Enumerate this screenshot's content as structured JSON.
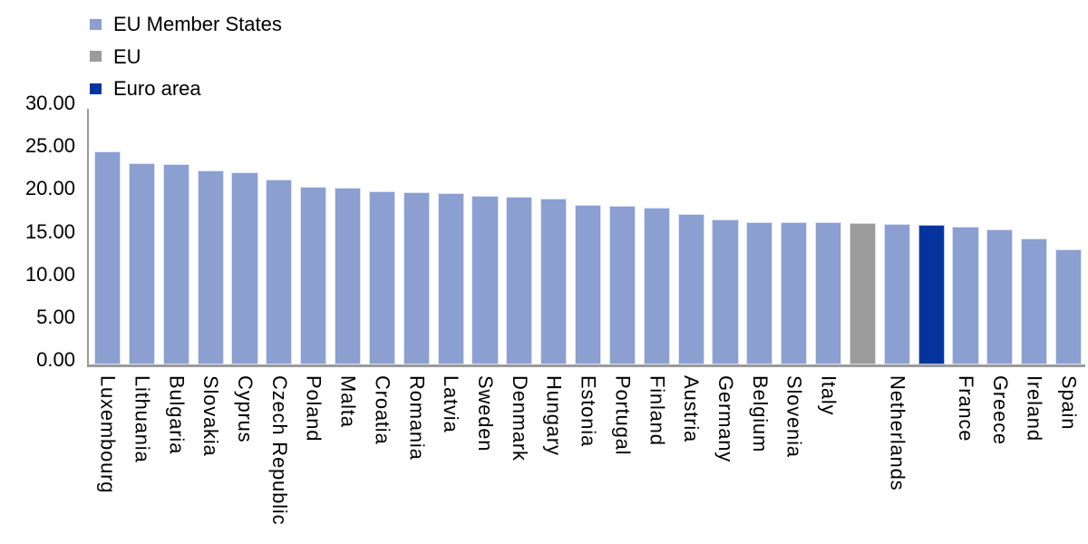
{
  "chart_data": {
    "type": "bar",
    "title": "",
    "xlabel": "",
    "ylabel": "",
    "ylim": [
      0,
      30
    ],
    "grid": false,
    "legend_position": "top-left",
    "axis_color": "#9B9B9B",
    "text_color": "#000000",
    "yticks": [
      {
        "value": 0,
        "label": "0.00"
      },
      {
        "value": 5,
        "label": "5.00"
      },
      {
        "value": 10,
        "label": "10.00"
      },
      {
        "value": 15,
        "label": "15.00"
      },
      {
        "value": 20,
        "label": "20.00"
      },
      {
        "value": 25,
        "label": "25.00"
      },
      {
        "value": 30,
        "label": "30.00"
      }
    ],
    "legend": [
      {
        "name": "EU Member States",
        "color": "#8B9FD1",
        "border": "#DDE3F2"
      },
      {
        "name": "EU",
        "color": "#9B9B9B",
        "border": "#D9D9D9"
      },
      {
        "name": "Euro area",
        "color": "#05349E",
        "border": "#B9C3E2"
      }
    ],
    "bars": [
      {
        "label": "Luxembourg",
        "series": "EU Member States",
        "value": 24.9
      },
      {
        "label": "Lithuania",
        "series": "EU Member States",
        "value": 23.5
      },
      {
        "label": "Bulgaria",
        "series": "EU Member States",
        "value": 23.4
      },
      {
        "label": "Slovakia",
        "series": "EU Member States",
        "value": 22.7
      },
      {
        "label": "Cyprus",
        "series": "EU Member States",
        "value": 22.5
      },
      {
        "label": "Czech Republic",
        "series": "EU Member States",
        "value": 21.6
      },
      {
        "label": "Poland",
        "series": "EU Member States",
        "value": 20.8
      },
      {
        "label": "Malta",
        "series": "EU Member States",
        "value": 20.7
      },
      {
        "label": "Croatia",
        "series": "EU Member States",
        "value": 20.2
      },
      {
        "label": "Romania",
        "series": "EU Member States",
        "value": 20.1
      },
      {
        "label": "Latvia",
        "series": "EU Member States",
        "value": 20.0
      },
      {
        "label": "Sweden",
        "series": "EU Member States",
        "value": 19.7
      },
      {
        "label": "Denmark",
        "series": "EU Member States",
        "value": 19.6
      },
      {
        "label": "Hungary",
        "series": "EU Member States",
        "value": 19.4
      },
      {
        "label": "Estonia",
        "series": "EU Member States",
        "value": 18.7
      },
      {
        "label": "Portugal",
        "series": "EU Member States",
        "value": 18.6
      },
      {
        "label": "Finland",
        "series": "EU Member States",
        "value": 18.3
      },
      {
        "label": "Austria",
        "series": "EU Member States",
        "value": 17.6
      },
      {
        "label": "Germany",
        "series": "EU Member States",
        "value": 17.0
      },
      {
        "label": "Belgium",
        "series": "EU Member States",
        "value": 16.7
      },
      {
        "label": "Slovenia",
        "series": "EU Member States",
        "value": 16.6
      },
      {
        "label": "Italy",
        "series": "EU Member States",
        "value": 16.6
      },
      {
        "label": "",
        "name": "EU",
        "series": "EU",
        "value": 16.5
      },
      {
        "label": "Netherlands",
        "series": "EU Member States",
        "value": 16.4
      },
      {
        "label": "",
        "name": "Euro area",
        "series": "Euro area",
        "value": 16.3
      },
      {
        "label": "France",
        "series": "EU Member States",
        "value": 16.1
      },
      {
        "label": "Greece",
        "series": "EU Member States",
        "value": 15.8
      },
      {
        "label": "Ireland",
        "series": "EU Member States",
        "value": 14.7
      },
      {
        "label": "Spain",
        "series": "EU Member States",
        "value": 13.5
      }
    ]
  }
}
